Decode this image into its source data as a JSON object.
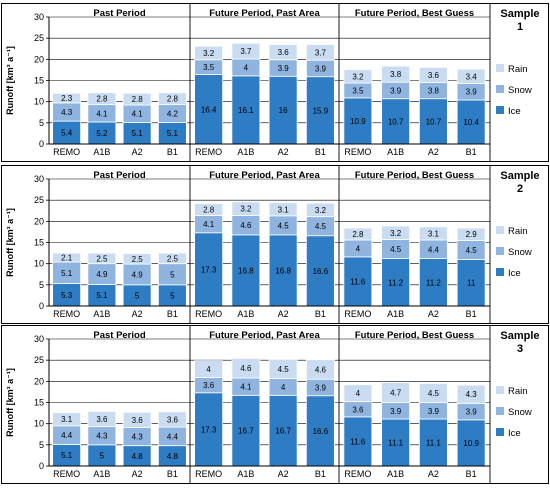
{
  "colors": {
    "ice": "#2e7cc4",
    "snow": "#8fb4e0",
    "rain": "#c9dcf2",
    "axis": "#000000",
    "grid": "#000000"
  },
  "chart_data": [
    {
      "type": "bar",
      "stacked": true,
      "sample_label": "Sample\n1",
      "ylabel": "Runoff [km³ a⁻¹]",
      "ylim": [
        0,
        30
      ],
      "yticks": [
        0,
        5,
        10,
        15,
        20,
        25,
        30
      ],
      "grid": true,
      "legend": {
        "entries": [
          "Rain",
          "Snow",
          "Ice"
        ],
        "placement": "right"
      },
      "groups": [
        {
          "title": "Past Period",
          "categories": [
            "REMO",
            "A1B",
            "A2",
            "B1"
          ],
          "series": [
            {
              "name": "Ice",
              "values": [
                5.4,
                5.2,
                5.1,
                5.1
              ]
            },
            {
              "name": "Snow",
              "values": [
                4.3,
                4.1,
                4.1,
                4.2
              ]
            },
            {
              "name": "Rain",
              "values": [
                2.3,
                2.8,
                2.8,
                2.8
              ]
            }
          ]
        },
        {
          "title": "Future Period, Past Area",
          "categories": [
            "REMO",
            "A1B",
            "A2",
            "B1"
          ],
          "series": [
            {
              "name": "Ice",
              "values": [
                16.4,
                16.1,
                16.0,
                15.9
              ]
            },
            {
              "name": "Snow",
              "values": [
                3.5,
                4.0,
                3.9,
                3.9
              ]
            },
            {
              "name": "Rain",
              "values": [
                3.2,
                3.7,
                3.6,
                3.7
              ]
            }
          ]
        },
        {
          "title": "Future Period, Best Guess",
          "categories": [
            "REMO",
            "A1B",
            "A2",
            "B1"
          ],
          "series": [
            {
              "name": "Ice",
              "values": [
                10.9,
                10.7,
                10.7,
                10.4
              ]
            },
            {
              "name": "Snow",
              "values": [
                3.5,
                3.9,
                3.8,
                3.9
              ]
            },
            {
              "name": "Rain",
              "values": [
                3.2,
                3.8,
                3.6,
                3.4
              ]
            }
          ]
        }
      ]
    },
    {
      "type": "bar",
      "stacked": true,
      "sample_label": "Sample\n2",
      "ylabel": "Runoff [km³ a⁻¹]",
      "ylim": [
        0,
        30
      ],
      "yticks": [
        0,
        5,
        10,
        15,
        20,
        25,
        30
      ],
      "grid": true,
      "legend": {
        "entries": [
          "Rain",
          "Snow",
          "Ice"
        ],
        "placement": "right"
      },
      "groups": [
        {
          "title": "Past Period",
          "categories": [
            "REMO",
            "A1B",
            "A2",
            "B1"
          ],
          "series": [
            {
              "name": "Ice",
              "values": [
                5.3,
                5.1,
                5.0,
                5.0
              ]
            },
            {
              "name": "Snow",
              "values": [
                5.1,
                4.9,
                4.9,
                5.0
              ]
            },
            {
              "name": "Rain",
              "values": [
                2.1,
                2.5,
                2.5,
                2.5
              ]
            }
          ]
        },
        {
          "title": "Future Period, Past Area",
          "categories": [
            "REMO",
            "A1B",
            "A2",
            "B1"
          ],
          "series": [
            {
              "name": "Ice",
              "values": [
                17.3,
                16.8,
                16.8,
                16.6
              ]
            },
            {
              "name": "Snow",
              "values": [
                4.1,
                4.6,
                4.5,
                4.5
              ]
            },
            {
              "name": "Rain",
              "values": [
                2.8,
                3.2,
                3.1,
                3.2
              ]
            }
          ]
        },
        {
          "title": "Future Period, Best Guess",
          "categories": [
            "REMO",
            "A1B",
            "A2",
            "B1"
          ],
          "series": [
            {
              "name": "Ice",
              "values": [
                11.6,
                11.2,
                11.2,
                11.0
              ]
            },
            {
              "name": "Snow",
              "values": [
                4.0,
                4.5,
                4.4,
                4.5
              ]
            },
            {
              "name": "Rain",
              "values": [
                2.8,
                3.2,
                3.1,
                2.9
              ]
            }
          ]
        }
      ]
    },
    {
      "type": "bar",
      "stacked": true,
      "sample_label": "Sample\n3",
      "ylabel": "Runoff [km³ a⁻¹]",
      "ylim": [
        0,
        30
      ],
      "yticks": [
        0,
        5,
        10,
        15,
        20,
        25,
        30
      ],
      "grid": true,
      "legend": {
        "entries": [
          "Rain",
          "Snow",
          "Ice"
        ],
        "placement": "right"
      },
      "groups": [
        {
          "title": "Past Period",
          "categories": [
            "REMO",
            "A1B",
            "A2",
            "B1"
          ],
          "series": [
            {
              "name": "Ice",
              "values": [
                5.1,
                5.0,
                4.8,
                4.8
              ]
            },
            {
              "name": "Snow",
              "values": [
                4.4,
                4.3,
                4.3,
                4.4
              ]
            },
            {
              "name": "Rain",
              "values": [
                3.1,
                3.6,
                3.6,
                3.6
              ]
            }
          ]
        },
        {
          "title": "Future Period, Past Area",
          "categories": [
            "REMO",
            "A1B",
            "A2",
            "B1"
          ],
          "series": [
            {
              "name": "Ice",
              "values": [
                17.3,
                16.7,
                16.7,
                16.6
              ]
            },
            {
              "name": "Snow",
              "values": [
                3.6,
                4.1,
                4.0,
                3.9
              ]
            },
            {
              "name": "Rain",
              "values": [
                4.0,
                4.6,
                4.5,
                4.6
              ]
            }
          ]
        },
        {
          "title": "Future Period, Best Guess",
          "categories": [
            "REMO",
            "A1B",
            "A2",
            "B1"
          ],
          "series": [
            {
              "name": "Ice",
              "values": [
                11.6,
                11.1,
                11.1,
                10.9
              ]
            },
            {
              "name": "Snow",
              "values": [
                3.6,
                3.9,
                3.9,
                3.9
              ]
            },
            {
              "name": "Rain",
              "values": [
                4.0,
                4.7,
                4.5,
                4.3
              ]
            }
          ]
        }
      ]
    }
  ]
}
